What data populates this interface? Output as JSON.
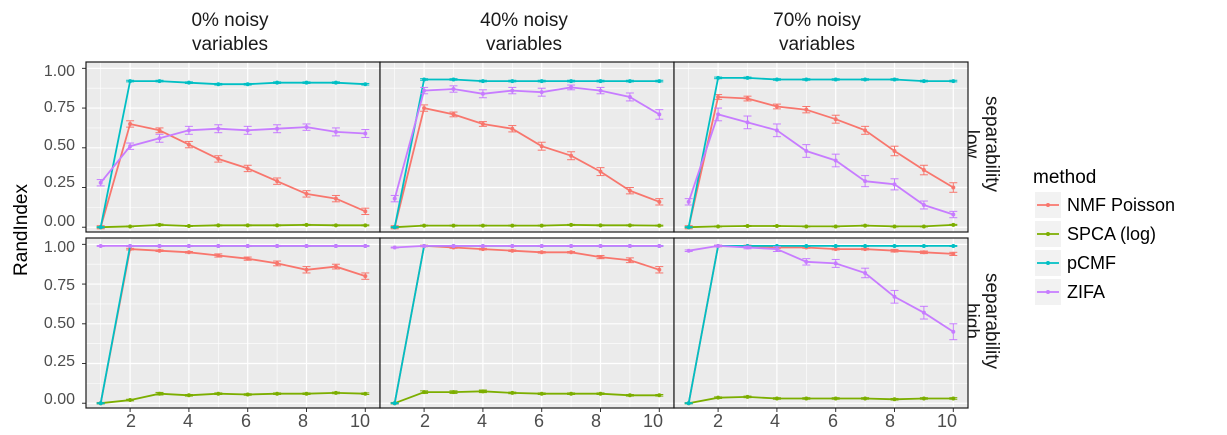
{
  "chart_data": {
    "type": "line",
    "ylabel": "RandIndex",
    "x": [
      1,
      2,
      3,
      4,
      5,
      6,
      7,
      8,
      9,
      10
    ],
    "x_ticks": [
      "2",
      "4",
      "6",
      "8",
      "10"
    ],
    "y_ticks": [
      "0.00",
      "0.25",
      "0.50",
      "0.75",
      "1.00"
    ],
    "ylim": [
      -0.03,
      1.04
    ],
    "xlim": [
      0.5,
      10.5
    ],
    "grid": true,
    "error_bars": true,
    "legend": {
      "title": "method",
      "placement": "right",
      "entries": [
        "NMF Poisson",
        "SPCA (log)",
        "pCMF",
        "ZIFA"
      ]
    },
    "colors": {
      "NMF Poisson": "#F8766D",
      "SPCA (log)": "#7CAE00",
      "pCMF": "#00BFC4",
      "ZIFA": "#C77CFF",
      "panel_bg": "#EBEBEB",
      "strip_bg": "#FFFFFF",
      "grid": "#FFFFFF"
    },
    "columns": [
      {
        "label_line1": "0% noisy",
        "label_line2": "variables"
      },
      {
        "label_line1": "40% noisy",
        "label_line2": "variables"
      },
      {
        "label_line1": "70% noisy",
        "label_line2": "variables"
      }
    ],
    "rows": [
      {
        "label_line1": "low",
        "label_line2": "separability"
      },
      {
        "label_line1": "high",
        "label_line2": "separability"
      }
    ],
    "panels": [
      {
        "row": "low separability",
        "column": "0% noisy variables",
        "series": [
          {
            "name": "NMF Poisson",
            "values": [
              0.0,
              0.65,
              0.61,
              0.52,
              0.43,
              0.37,
              0.29,
              0.21,
              0.18,
              0.1
            ],
            "err": [
              0.01,
              0.02,
              0.015,
              0.02,
              0.02,
              0.02,
              0.02,
              0.02,
              0.02,
              0.02
            ]
          },
          {
            "name": "SPCA (log)",
            "values": [
              0.0,
              0.005,
              0.015,
              0.008,
              0.012,
              0.012,
              0.012,
              0.015,
              0.012,
              0.012
            ],
            "err": [
              0.003,
              0.003,
              0.005,
              0.003,
              0.003,
              0.003,
              0.003,
              0.003,
              0.003,
              0.003
            ]
          },
          {
            "name": "pCMF",
            "values": [
              0.0,
              0.92,
              0.92,
              0.91,
              0.9,
              0.9,
              0.91,
              0.91,
              0.91,
              0.9
            ],
            "err": [
              0.003,
              0.005,
              0.005,
              0.005,
              0.005,
              0.005,
              0.005,
              0.005,
              0.005,
              0.005
            ]
          },
          {
            "name": "ZIFA",
            "values": [
              0.28,
              0.51,
              0.56,
              0.61,
              0.62,
              0.61,
              0.62,
              0.63,
              0.6,
              0.59
            ],
            "err": [
              0.02,
              0.02,
              0.025,
              0.025,
              0.025,
              0.025,
              0.025,
              0.02,
              0.025,
              0.025
            ]
          }
        ]
      },
      {
        "row": "low separability",
        "column": "40% noisy variables",
        "series": [
          {
            "name": "NMF Poisson",
            "values": [
              0.0,
              0.75,
              0.71,
              0.65,
              0.62,
              0.51,
              0.45,
              0.35,
              0.23,
              0.16
            ],
            "err": [
              0.01,
              0.02,
              0.015,
              0.015,
              0.02,
              0.025,
              0.025,
              0.025,
              0.02,
              0.02
            ]
          },
          {
            "name": "SPCA (log)",
            "values": [
              0.0,
              0.01,
              0.01,
              0.01,
              0.01,
              0.01,
              0.015,
              0.012,
              0.012,
              0.01
            ],
            "err": [
              0.003,
              0.003,
              0.003,
              0.003,
              0.003,
              0.003,
              0.003,
              0.003,
              0.003,
              0.003
            ]
          },
          {
            "name": "pCMF",
            "values": [
              0.0,
              0.93,
              0.93,
              0.92,
              0.92,
              0.92,
              0.92,
              0.92,
              0.92,
              0.92
            ],
            "err": [
              0.003,
              0.005,
              0.005,
              0.005,
              0.005,
              0.005,
              0.005,
              0.005,
              0.005,
              0.005
            ]
          },
          {
            "name": "ZIFA",
            "values": [
              0.18,
              0.86,
              0.87,
              0.84,
              0.86,
              0.85,
              0.88,
              0.86,
              0.82,
              0.71
            ],
            "err": [
              0.02,
              0.02,
              0.02,
              0.025,
              0.02,
              0.025,
              0.015,
              0.02,
              0.025,
              0.03
            ]
          }
        ]
      },
      {
        "row": "low separability",
        "column": "70% noisy variables",
        "series": [
          {
            "name": "NMF Poisson",
            "values": [
              0.0,
              0.82,
              0.81,
              0.76,
              0.74,
              0.68,
              0.61,
              0.48,
              0.36,
              0.25
            ],
            "err": [
              0.01,
              0.015,
              0.015,
              0.015,
              0.02,
              0.025,
              0.025,
              0.03,
              0.03,
              0.03
            ]
          },
          {
            "name": "SPCA (log)",
            "values": [
              0.0,
              0.005,
              0.008,
              0.008,
              0.005,
              0.005,
              0.01,
              0.005,
              0.005,
              0.015
            ],
            "err": [
              0.003,
              0.003,
              0.003,
              0.003,
              0.003,
              0.003,
              0.003,
              0.003,
              0.003,
              0.003
            ]
          },
          {
            "name": "pCMF",
            "values": [
              0.0,
              0.94,
              0.94,
              0.93,
              0.93,
              0.93,
              0.93,
              0.93,
              0.92,
              0.92
            ],
            "err": [
              0.003,
              0.005,
              0.005,
              0.005,
              0.005,
              0.005,
              0.005,
              0.005,
              0.005,
              0.005
            ]
          },
          {
            "name": "ZIFA",
            "values": [
              0.16,
              0.71,
              0.66,
              0.61,
              0.48,
              0.42,
              0.29,
              0.27,
              0.14,
              0.08
            ],
            "err": [
              0.02,
              0.04,
              0.04,
              0.04,
              0.04,
              0.04,
              0.035,
              0.035,
              0.025,
              0.02
            ]
          }
        ]
      },
      {
        "row": "high separability",
        "column": "0% noisy variables",
        "series": [
          {
            "name": "NMF Poisson",
            "values": [
              0.0,
              0.97,
              0.96,
              0.95,
              0.93,
              0.91,
              0.88,
              0.84,
              0.86,
              0.8
            ],
            "err": [
              0.005,
              0.005,
              0.005,
              0.005,
              0.01,
              0.01,
              0.015,
              0.02,
              0.015,
              0.02
            ]
          },
          {
            "name": "SPCA (log)",
            "values": [
              0.0,
              0.02,
              0.06,
              0.05,
              0.06,
              0.055,
              0.06,
              0.06,
              0.065,
              0.06
            ],
            "err": [
              0.003,
              0.005,
              0.008,
              0.005,
              0.005,
              0.005,
              0.005,
              0.005,
              0.005,
              0.005
            ]
          },
          {
            "name": "pCMF",
            "values": [
              0.0,
              0.99,
              0.99,
              0.99,
              0.99,
              0.99,
              0.99,
              0.99,
              0.99,
              0.99
            ],
            "err": [
              0.003,
              0.003,
              0.003,
              0.003,
              0.003,
              0.003,
              0.003,
              0.003,
              0.003,
              0.003
            ]
          },
          {
            "name": "ZIFA",
            "values": [
              0.99,
              0.99,
              0.99,
              0.99,
              0.99,
              0.99,
              0.99,
              0.99,
              0.99,
              0.99
            ],
            "err": [
              0.003,
              0.003,
              0.003,
              0.003,
              0.003,
              0.003,
              0.003,
              0.003,
              0.003,
              0.003
            ]
          }
        ]
      },
      {
        "row": "high separability",
        "column": "40% noisy variables",
        "series": [
          {
            "name": "NMF Poisson",
            "values": [
              0.0,
              0.99,
              0.98,
              0.97,
              0.96,
              0.95,
              0.95,
              0.92,
              0.9,
              0.84
            ],
            "err": [
              0.005,
              0.005,
              0.005,
              0.005,
              0.005,
              0.005,
              0.005,
              0.01,
              0.015,
              0.02
            ]
          },
          {
            "name": "SPCA (log)",
            "values": [
              0.0,
              0.07,
              0.07,
              0.075,
              0.065,
              0.06,
              0.06,
              0.06,
              0.05,
              0.05
            ],
            "err": [
              0.003,
              0.008,
              0.008,
              0.008,
              0.005,
              0.005,
              0.005,
              0.005,
              0.005,
              0.005
            ]
          },
          {
            "name": "pCMF",
            "values": [
              0.0,
              0.99,
              0.99,
              0.99,
              0.99,
              0.99,
              0.99,
              0.99,
              0.99,
              0.99
            ],
            "err": [
              0.003,
              0.003,
              0.003,
              0.003,
              0.003,
              0.003,
              0.003,
              0.003,
              0.003,
              0.003
            ]
          },
          {
            "name": "ZIFA",
            "values": [
              0.98,
              0.99,
              0.99,
              0.99,
              0.99,
              0.99,
              0.99,
              0.99,
              0.99,
              0.99
            ],
            "err": [
              0.003,
              0.003,
              0.003,
              0.003,
              0.003,
              0.003,
              0.003,
              0.003,
              0.003,
              0.003
            ]
          }
        ]
      },
      {
        "row": "high separability",
        "column": "70% noisy variables",
        "series": [
          {
            "name": "NMF Poisson",
            "values": [
              0.0,
              0.99,
              0.99,
              0.98,
              0.98,
              0.97,
              0.97,
              0.96,
              0.95,
              0.94
            ],
            "err": [
              0.003,
              0.005,
              0.005,
              0.005,
              0.005,
              0.005,
              0.005,
              0.008,
              0.008,
              0.01
            ]
          },
          {
            "name": "SPCA (log)",
            "values": [
              0.0,
              0.035,
              0.04,
              0.03,
              0.03,
              0.03,
              0.03,
              0.025,
              0.03,
              0.03
            ],
            "err": [
              0.003,
              0.005,
              0.005,
              0.005,
              0.005,
              0.005,
              0.005,
              0.005,
              0.005,
              0.005
            ]
          },
          {
            "name": "pCMF",
            "values": [
              0.0,
              0.99,
              0.99,
              0.99,
              0.99,
              0.99,
              0.99,
              0.99,
              0.99,
              0.99
            ],
            "err": [
              0.003,
              0.003,
              0.003,
              0.003,
              0.003,
              0.003,
              0.003,
              0.003,
              0.003,
              0.003
            ]
          },
          {
            "name": "ZIFA",
            "values": [
              0.96,
              0.99,
              0.98,
              0.97,
              0.89,
              0.88,
              0.82,
              0.67,
              0.57,
              0.45
            ],
            "err": [
              0.005,
              0.005,
              0.008,
              0.015,
              0.02,
              0.025,
              0.03,
              0.04,
              0.04,
              0.05
            ]
          }
        ]
      }
    ]
  }
}
